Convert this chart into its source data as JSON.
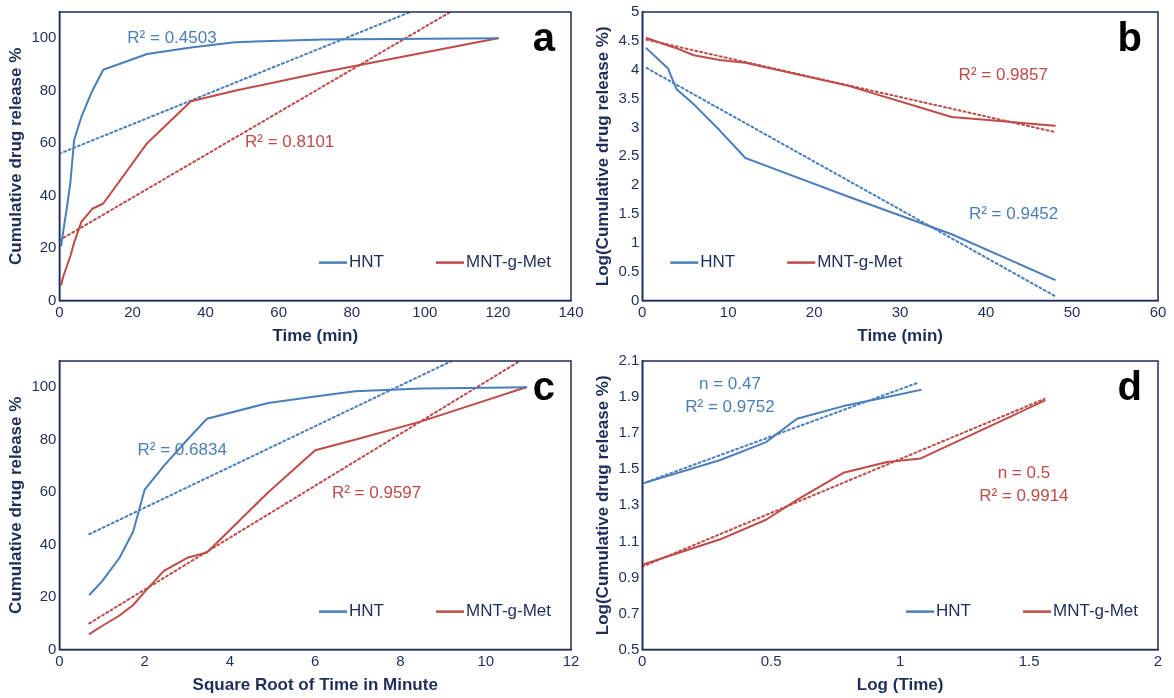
{
  "chart_data": [
    {
      "type": "line",
      "title": "a",
      "xlabel": "Time (min)",
      "ylabel": "Cumulative drug release %",
      "xlim": [
        0,
        140
      ],
      "xticks": [
        0,
        20,
        40,
        60,
        80,
        100,
        120,
        140
      ],
      "ylim": [
        0,
        110
      ],
      "yticks": [
        0,
        20,
        40,
        60,
        80,
        100
      ],
      "grid": false,
      "legend": "bottom right",
      "marker": "none",
      "series": [
        {
          "name": "HNT",
          "color": "#4a7ebb",
          "x": [
            0.5,
            1,
            2,
            3,
            4,
            6,
            9,
            12,
            24,
            36,
            48,
            72,
            120
          ],
          "values": [
            21,
            26,
            35,
            45,
            61,
            70,
            80,
            88,
            94,
            96.5,
            98.5,
            99.5,
            100
          ]
        },
        {
          "name": "MNT-g-Met",
          "color": "#be4b48",
          "x": [
            0.5,
            1,
            2,
            3,
            4,
            6,
            9,
            12,
            24,
            36,
            48,
            72,
            120
          ],
          "values": [
            6,
            9,
            13,
            17,
            22,
            30,
            35,
            37,
            60,
            76,
            80,
            87,
            100
          ]
        },
        {
          "color": "#4a7ebb",
          "line_style": "dotted",
          "x": [
            0,
            96
          ],
          "values": [
            56,
            110
          ]
        },
        {
          "color": "#be4b48",
          "line_style": "dotted",
          "x": [
            0,
            107
          ],
          "values": [
            23,
            110
          ]
        }
      ],
      "annotations": [
        "R² = 0.4503",
        "R² = 0.8101"
      ]
    },
    {
      "type": "line",
      "title": "b",
      "xlabel": "Time (min)",
      "ylabel": "Log(Cumulative drug release %)",
      "xlim": [
        0,
        60
      ],
      "xticks": [
        0,
        10,
        20,
        30,
        40,
        50,
        60
      ],
      "ylim": [
        0,
        5
      ],
      "yticks": [
        0,
        0.5,
        1,
        1.5,
        2,
        2.5,
        3,
        3.5,
        4,
        4.5,
        5
      ],
      "grid": false,
      "legend": "bottom left",
      "marker": "none",
      "series": [
        {
          "name": "HNT",
          "color": "#4a7ebb",
          "x": [
            0.5,
            3,
            4,
            6,
            9,
            12,
            24,
            36,
            48
          ],
          "values": [
            4.37,
            4.02,
            3.66,
            3.4,
            2.95,
            2.47,
            1.8,
            1.15,
            0.36
          ]
        },
        {
          "name": "MNT-g-Met",
          "color": "#be4b48",
          "x": [
            0.5,
            3,
            4,
            6,
            9,
            12,
            24,
            36,
            48
          ],
          "values": [
            4.55,
            4.42,
            4.37,
            4.25,
            4.17,
            4.12,
            3.72,
            3.18,
            3.03
          ]
        },
        {
          "color": "#4a7ebb",
          "line_style": "dotted",
          "x": [
            0.5,
            48
          ],
          "values": [
            4.03,
            0.08
          ]
        },
        {
          "color": "#be4b48",
          "line_style": "dotted",
          "x": [
            0.5,
            48
          ],
          "values": [
            4.52,
            2.92
          ]
        }
      ],
      "annotations": [
        "R² = 0.9857",
        "R² = 0.9452"
      ]
    },
    {
      "type": "line",
      "title": "c",
      "xlabel": "Square Root of Time in Minute",
      "ylabel": "Cumulative drug release %",
      "xlim": [
        0,
        12
      ],
      "xticks": [
        0,
        2,
        4,
        6,
        8,
        10,
        12
      ],
      "ylim": [
        0,
        110
      ],
      "yticks": [
        0,
        20,
        40,
        60,
        80,
        100
      ],
      "grid": false,
      "legend": "bottom right",
      "marker": "none",
      "series": [
        {
          "name": "HNT",
          "color": "#4a7ebb",
          "x": [
            0.71,
            1,
            1.41,
            1.73,
            2,
            2.45,
            3,
            3.46,
            4.9,
            6,
            6.93,
            8.49,
            10.95
          ],
          "values": [
            21,
            26,
            35,
            45,
            61,
            70,
            80,
            88,
            94,
            96.5,
            98.5,
            99.5,
            100
          ]
        },
        {
          "name": "MNT-g-Met",
          "color": "#be4b48",
          "x": [
            0.71,
            1,
            1.41,
            1.73,
            2,
            2.45,
            3,
            3.46,
            4.9,
            6,
            6.93,
            8.49,
            10.95
          ],
          "values": [
            6,
            9,
            13,
            17,
            22,
            30,
            35,
            37,
            60,
            76,
            80,
            87,
            100
          ]
        },
        {
          "color": "#4a7ebb",
          "line_style": "dotted",
          "x": [
            0.7,
            9.2
          ],
          "values": [
            44,
            110
          ]
        },
        {
          "color": "#be4b48",
          "line_style": "dotted",
          "x": [
            0.7,
            10.8
          ],
          "values": [
            10,
            110
          ]
        }
      ],
      "annotations": [
        "R² = 0.6834",
        "R² = 0.9597"
      ]
    },
    {
      "type": "line",
      "title": "d",
      "xlabel": "Log (Time)",
      "ylabel": "Log(Cumulative drug release %)",
      "xlim": [
        0,
        2
      ],
      "xticks": [
        0,
        0.5,
        1,
        1.5,
        2
      ],
      "ylim": [
        0.5,
        2.1
      ],
      "yticks": [
        0.5,
        0.7,
        0.9,
        1.1,
        1.3,
        1.5,
        1.7,
        1.9,
        2.1
      ],
      "grid": false,
      "legend": "bottom right",
      "marker": "none",
      "series": [
        {
          "name": "HNT",
          "color": "#4a7ebb",
          "x": [
            0,
            0.3,
            0.48,
            0.6,
            0.78,
            0.95,
            1.08
          ],
          "values": [
            1.42,
            1.55,
            1.65,
            1.78,
            1.85,
            1.9,
            1.94
          ]
        },
        {
          "name": "MNT-g-Met",
          "color": "#be4b48",
          "x": [
            0,
            0.3,
            0.48,
            0.6,
            0.78,
            0.95,
            1.08,
            1.38,
            1.56
          ],
          "values": [
            0.97,
            1.11,
            1.22,
            1.33,
            1.48,
            1.54,
            1.56,
            1.76,
            1.88
          ]
        },
        {
          "color": "#4a7ebb",
          "line_style": "dotted",
          "x": [
            0,
            1.07
          ],
          "values": [
            1.42,
            1.98
          ]
        },
        {
          "color": "#be4b48",
          "line_style": "dotted",
          "x": [
            0,
            1.56
          ],
          "values": [
            0.96,
            1.89
          ]
        }
      ],
      "annotations": [
        "n = 0.47",
        "R² = 0.9752",
        "n = 0.5",
        "R² = 0.9914"
      ]
    }
  ]
}
